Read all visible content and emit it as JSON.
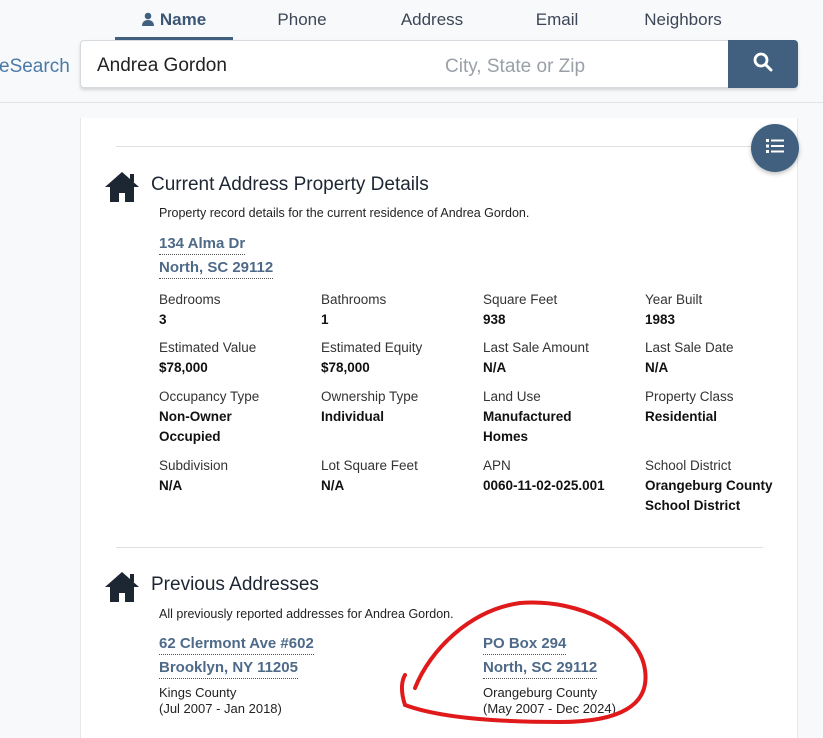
{
  "nav": {
    "tabs": [
      {
        "label": "Name",
        "active": true
      },
      {
        "label": "Phone"
      },
      {
        "label": "Address"
      },
      {
        "label": "Email"
      },
      {
        "label": "Neighbors"
      }
    ]
  },
  "brand": "eSearch",
  "search": {
    "name_value": "Andrea Gordon",
    "location_placeholder": "City, State or Zip",
    "button_icon": "search-icon"
  },
  "colors": {
    "accent": "#41607f",
    "link": "#4e6a88",
    "annotation": "#e0191b"
  },
  "current": {
    "title": "Current Address Property Details",
    "description": "Property record details for the current residence of Andrea Gordon.",
    "address_line1": "134 Alma Dr",
    "address_line2": "North, SC 29112",
    "fields": [
      {
        "label": "Bedrooms",
        "value": "3"
      },
      {
        "label": "Bathrooms",
        "value": "1"
      },
      {
        "label": "Square Feet",
        "value": "938"
      },
      {
        "label": "Year Built",
        "value": "1983"
      },
      {
        "label": "Estimated Value",
        "value": "$78,000"
      },
      {
        "label": "Estimated Equity",
        "value": "$78,000"
      },
      {
        "label": "Last Sale Amount",
        "value": "N/A"
      },
      {
        "label": "Last Sale Date",
        "value": "N/A"
      },
      {
        "label": "Occupancy Type",
        "value": "Non-Owner Occupied"
      },
      {
        "label": "Ownership Type",
        "value": "Individual"
      },
      {
        "label": "Land Use",
        "value": "Manufactured Homes"
      },
      {
        "label": "Property Class",
        "value": "Residential"
      },
      {
        "label": "Subdivision",
        "value": "N/A"
      },
      {
        "label": "Lot Square Feet",
        "value": "N/A"
      },
      {
        "label": "APN",
        "value": "0060-11-02-025.001"
      },
      {
        "label": "School District",
        "value": "Orangeburg County School District"
      }
    ]
  },
  "previous": {
    "title": "Previous Addresses",
    "description": "All previously reported addresses for Andrea Gordon.",
    "items": [
      {
        "line1": "62 Clermont Ave #602",
        "line2": "Brooklyn, NY 11205",
        "county": "Kings County",
        "dates": "(Jul 2007 - Jan 2018)"
      },
      {
        "line1": "PO Box 294",
        "line2": "North, SC 29112",
        "county": "Orangeburg County",
        "dates": "(May 2007 - Dec 2024)"
      }
    ]
  }
}
